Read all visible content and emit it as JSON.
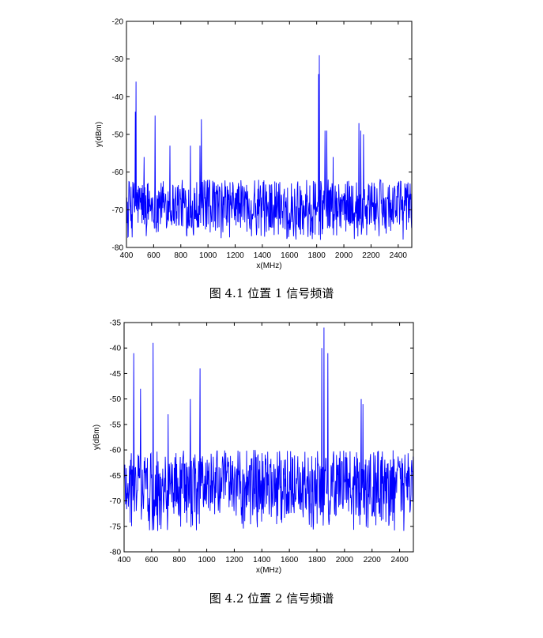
{
  "chart_data": [
    {
      "type": "line",
      "caption": "图 4.1 位置 1 信号频谱",
      "xlabel": "x(MHz)",
      "ylabel": "y(dBm)",
      "xlim": [
        400,
        2500
      ],
      "ylim": [
        -80,
        -20
      ],
      "xticks": [
        400,
        600,
        800,
        1000,
        1200,
        1400,
        1600,
        1800,
        2000,
        2200,
        2400
      ],
      "yticks": [
        -20,
        -30,
        -40,
        -50,
        -60,
        -70,
        -80
      ],
      "grid": false,
      "line_color": "#0000ff",
      "noise_floor": [
        -62,
        -75
      ],
      "peaks": [
        {
          "x": 470,
          "y": -36
        },
        {
          "x": 465,
          "y": -44
        },
        {
          "x": 530,
          "y": -56
        },
        {
          "x": 610,
          "y": -45
        },
        {
          "x": 720,
          "y": -53
        },
        {
          "x": 870,
          "y": -53
        },
        {
          "x": 950,
          "y": -46
        },
        {
          "x": 940,
          "y": -53
        },
        {
          "x": 1820,
          "y": -29
        },
        {
          "x": 1815,
          "y": -34
        },
        {
          "x": 1860,
          "y": -49
        },
        {
          "x": 1875,
          "y": -49
        },
        {
          "x": 1920,
          "y": -56
        },
        {
          "x": 2110,
          "y": -47
        },
        {
          "x": 2125,
          "y": -49
        },
        {
          "x": 2145,
          "y": -50
        }
      ]
    },
    {
      "type": "line",
      "caption": "图 4.2 位置 2 信号频谱",
      "xlabel": "x(MHz)",
      "ylabel": "y(dBm)",
      "xlim": [
        400,
        2500
      ],
      "ylim": [
        -80,
        -35
      ],
      "xticks": [
        400,
        600,
        800,
        1000,
        1200,
        1400,
        1600,
        1800,
        2000,
        2200,
        2400
      ],
      "yticks": [
        -35,
        -40,
        -45,
        -50,
        -55,
        -60,
        -65,
        -70,
        -75,
        -80
      ],
      "grid": false,
      "line_color": "#0000ff",
      "noise_floor": [
        -60,
        -73
      ],
      "peaks": [
        {
          "x": 470,
          "y": -41
        },
        {
          "x": 520,
          "y": -48
        },
        {
          "x": 610,
          "y": -39
        },
        {
          "x": 720,
          "y": -53
        },
        {
          "x": 880,
          "y": -50
        },
        {
          "x": 950,
          "y": -44
        },
        {
          "x": 1835,
          "y": -40
        },
        {
          "x": 1850,
          "y": -36
        },
        {
          "x": 1880,
          "y": -41
        },
        {
          "x": 2120,
          "y": -50
        },
        {
          "x": 2135,
          "y": -51
        }
      ]
    }
  ]
}
